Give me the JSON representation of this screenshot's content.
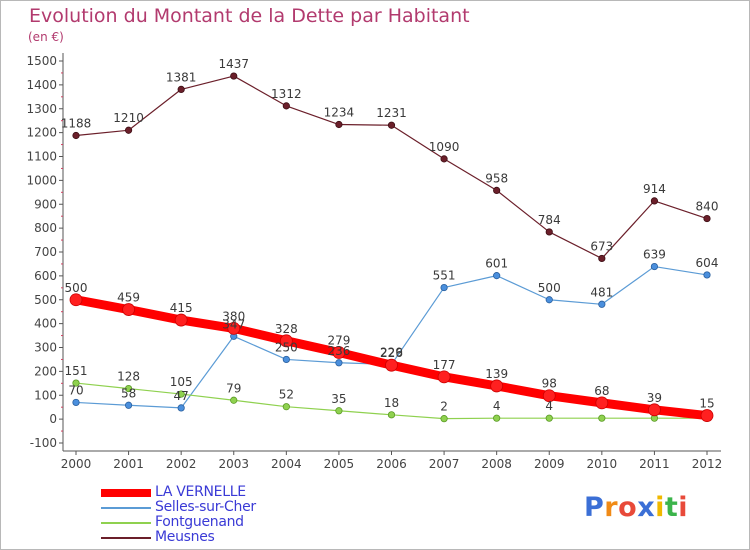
{
  "title": "Evolution du Montant de la Dette par Habitant",
  "subtitle": "(en €)",
  "chart_data": {
    "type": "line",
    "title": "Evolution du Montant de la Dette par Habitant",
    "subtitle": "(en €)",
    "xlabel": "",
    "ylabel": "",
    "x": [
      "2000",
      "2001",
      "2002",
      "2003",
      "2004",
      "2005",
      "2006",
      "2007",
      "2008",
      "2009",
      "2010",
      "2011",
      "2012"
    ],
    "ylim": [
      -100,
      1500
    ],
    "yticks": [
      -100,
      0,
      100,
      200,
      300,
      400,
      500,
      600,
      700,
      800,
      900,
      1000,
      1100,
      1200,
      1300,
      1400,
      1500
    ],
    "grid": false,
    "legend_position": "bottom-left",
    "series": [
      {
        "name": "Meusnes",
        "color": "#6b1f2a",
        "values": [
          1188,
          1210,
          1381,
          1437,
          1312,
          1234,
          1231,
          1090,
          958,
          784,
          673,
          914,
          840
        ],
        "labels": [
          "1188",
          "1210",
          "1381",
          "1437",
          "1312",
          "1234",
          "1231",
          "1090",
          "958",
          "784",
          "673",
          "914",
          "840"
        ]
      },
      {
        "name": "Selles-sur-Cher",
        "color": "#5b9bd5",
        "values": [
          70,
          58,
          47,
          347,
          250,
          236,
          229,
          551,
          601,
          500,
          481,
          639,
          604
        ],
        "labels": [
          "70",
          "58",
          "47",
          "347",
          "250",
          "236",
          "229",
          "551",
          "601",
          "500",
          "481",
          "639",
          "604"
        ]
      },
      {
        "name": "Fontguenand",
        "color": "#8fd14f",
        "values": [
          151,
          128,
          105,
          79,
          52,
          35,
          18,
          2,
          4,
          4,
          4,
          4,
          4
        ],
        "labels": [
          "151",
          "128",
          "105",
          "79",
          "52",
          "35",
          "18",
          "2",
          "4",
          "4",
          "",
          "",
          ""
        ]
      },
      {
        "name": "LA VERNELLE",
        "color": "#ff0000",
        "values": [
          500,
          459,
          415,
          380,
          328,
          279,
          226,
          177,
          139,
          98,
          68,
          39,
          15
        ],
        "labels": [
          "500",
          "459",
          "415",
          "380",
          "328",
          "279",
          "226",
          "177",
          "139",
          "98",
          "68",
          "39",
          "15"
        ]
      }
    ]
  },
  "legend": [
    {
      "label": "LA VERNELLE",
      "color": "#ff0000"
    },
    {
      "label": "Selles-sur-Cher",
      "color": "#5b9bd5"
    },
    {
      "label": "Fontguenand",
      "color": "#8fd14f"
    },
    {
      "label": "Meusnes",
      "color": "#6b1f2a"
    }
  ],
  "logo": {
    "letters": [
      "P",
      "r",
      "o",
      "x",
      "i",
      "t",
      "i"
    ],
    "colors": [
      "#3b6fd6",
      "#f08a16",
      "#e84a3a",
      "#3b6fd6",
      "#f0b800",
      "#3cb44b",
      "#e84a3a"
    ]
  }
}
